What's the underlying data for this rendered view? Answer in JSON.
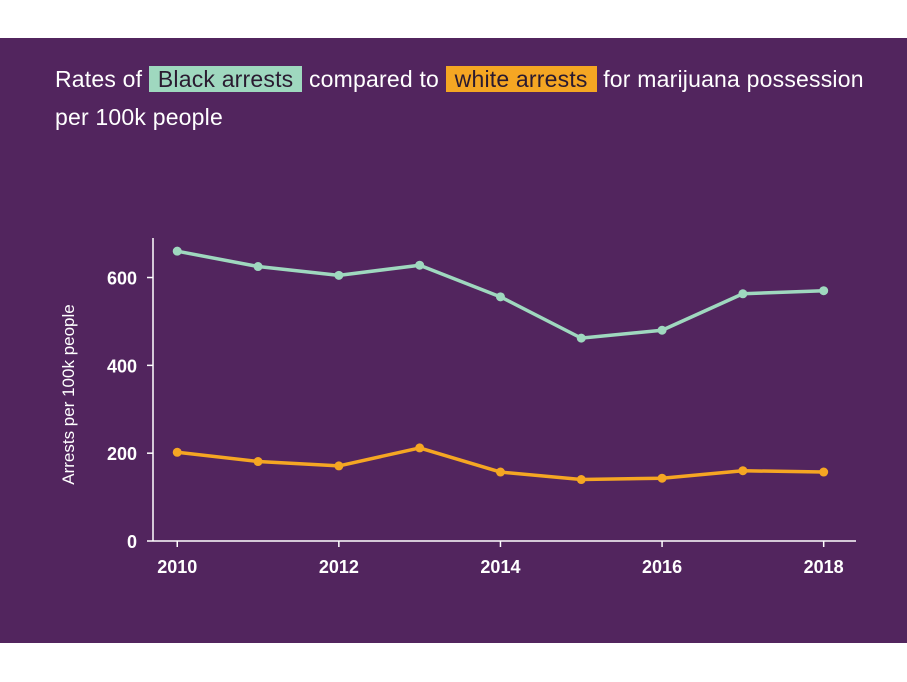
{
  "title": {
    "part1": "Rates of",
    "black_label": "Black arrests",
    "part2": "compared to",
    "white_label": "white arrests",
    "part3": "for marijuana possession per 100k people"
  },
  "colors": {
    "background": "#52255e",
    "black_series": "#9fd8bf",
    "white_series": "#f5a623",
    "axis": "#ffffff"
  },
  "chart_data": {
    "type": "line",
    "ylabel": "Arrests per 100k people",
    "x": [
      2010,
      2011,
      2012,
      2013,
      2014,
      2015,
      2016,
      2017,
      2018
    ],
    "xticks": [
      "2010",
      "2012",
      "2014",
      "2016",
      "2018"
    ],
    "yticks": [
      "0",
      "200",
      "400",
      "600"
    ],
    "xlim": [
      2009.7,
      2018.4
    ],
    "ylim": [
      0,
      690
    ],
    "grid": false,
    "series": [
      {
        "name": "Black arrests",
        "color": "#9fd8bf",
        "values": [
          660,
          625,
          605,
          628,
          556,
          462,
          480,
          563,
          570
        ]
      },
      {
        "name": "white arrests",
        "color": "#f5a623",
        "values": [
          202,
          181,
          171,
          212,
          157,
          140,
          143,
          160,
          157
        ]
      }
    ]
  }
}
